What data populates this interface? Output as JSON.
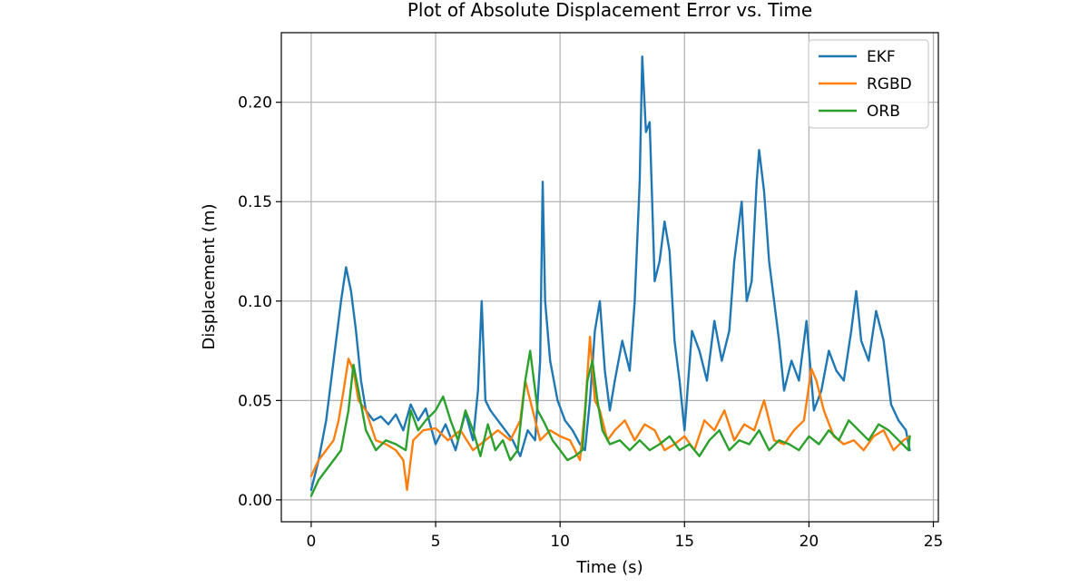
{
  "chart_data": {
    "type": "line",
    "title": "Plot of Absolute Displacement Error vs. Time",
    "xlabel": "Time (s)",
    "ylabel": "Displacement (m)",
    "xlim": [
      -1.2,
      25.2
    ],
    "ylim": [
      -0.011,
      0.235
    ],
    "x_ticks": [
      0,
      5,
      10,
      15,
      20,
      25
    ],
    "x_tick_labels": [
      "0",
      "5",
      "10",
      "15",
      "20",
      "25"
    ],
    "y_ticks": [
      0.0,
      0.05,
      0.1,
      0.15,
      0.2
    ],
    "y_tick_labels": [
      "0.00",
      "0.05",
      "0.10",
      "0.15",
      "0.20"
    ],
    "grid": true,
    "legend_position": "top-right",
    "series": [
      {
        "name": "EKF",
        "color": "#1f77b4",
        "x": [
          0.0,
          0.3,
          0.6,
          0.9,
          1.2,
          1.4,
          1.6,
          1.8,
          2.0,
          2.2,
          2.5,
          2.8,
          3.1,
          3.4,
          3.7,
          4.0,
          4.3,
          4.6,
          5.0,
          5.4,
          5.8,
          6.2,
          6.5,
          6.7,
          6.85,
          7.0,
          7.2,
          7.5,
          7.8,
          8.1,
          8.4,
          8.7,
          9.0,
          9.2,
          9.3,
          9.4,
          9.6,
          9.9,
          10.2,
          10.5,
          10.8,
          11.0,
          11.2,
          11.4,
          11.6,
          11.8,
          12.0,
          12.2,
          12.5,
          12.8,
          13.0,
          13.2,
          13.3,
          13.45,
          13.6,
          13.8,
          14.0,
          14.2,
          14.4,
          14.6,
          14.8,
          15.0,
          15.3,
          15.6,
          15.9,
          16.2,
          16.5,
          16.8,
          17.0,
          17.3,
          17.5,
          17.7,
          17.9,
          18.0,
          18.2,
          18.4,
          18.6,
          18.8,
          19.0,
          19.3,
          19.6,
          19.9,
          20.2,
          20.5,
          20.8,
          21.1,
          21.4,
          21.7,
          21.9,
          22.1,
          22.4,
          22.7,
          23.0,
          23.3,
          23.6,
          23.9,
          24.05
        ],
        "values": [
          0.005,
          0.02,
          0.04,
          0.07,
          0.1,
          0.117,
          0.105,
          0.085,
          0.06,
          0.045,
          0.04,
          0.042,
          0.038,
          0.043,
          0.035,
          0.048,
          0.04,
          0.046,
          0.028,
          0.038,
          0.025,
          0.044,
          0.03,
          0.055,
          0.1,
          0.05,
          0.045,
          0.04,
          0.035,
          0.03,
          0.022,
          0.035,
          0.03,
          0.07,
          0.16,
          0.1,
          0.07,
          0.05,
          0.04,
          0.035,
          0.028,
          0.025,
          0.05,
          0.085,
          0.1,
          0.065,
          0.045,
          0.06,
          0.08,
          0.065,
          0.1,
          0.16,
          0.223,
          0.185,
          0.19,
          0.11,
          0.12,
          0.14,
          0.125,
          0.08,
          0.06,
          0.035,
          0.085,
          0.075,
          0.06,
          0.09,
          0.07,
          0.085,
          0.12,
          0.15,
          0.1,
          0.11,
          0.16,
          0.176,
          0.155,
          0.12,
          0.1,
          0.08,
          0.055,
          0.07,
          0.06,
          0.09,
          0.045,
          0.055,
          0.075,
          0.065,
          0.06,
          0.085,
          0.105,
          0.08,
          0.07,
          0.095,
          0.08,
          0.048,
          0.04,
          0.035,
          0.025
        ]
      },
      {
        "name": "RGBD",
        "color": "#ff7f0e",
        "x": [
          0.0,
          0.3,
          0.6,
          0.9,
          1.1,
          1.3,
          1.5,
          1.7,
          1.9,
          2.2,
          2.6,
          3.0,
          3.4,
          3.7,
          3.85,
          4.1,
          4.5,
          5.0,
          5.5,
          6.0,
          6.5,
          7.0,
          7.5,
          8.0,
          8.4,
          8.6,
          8.9,
          9.2,
          9.6,
          10.0,
          10.4,
          10.8,
          11.0,
          11.2,
          11.4,
          11.6,
          11.9,
          12.2,
          12.6,
          13.0,
          13.4,
          13.8,
          14.2,
          14.6,
          15.0,
          15.4,
          15.8,
          16.2,
          16.6,
          17.0,
          17.4,
          17.8,
          18.2,
          18.6,
          19.0,
          19.4,
          19.8,
          20.1,
          20.3,
          20.6,
          21.0,
          21.4,
          21.8,
          22.2,
          22.6,
          23.0,
          23.4,
          23.8,
          24.05
        ],
        "values": [
          0.012,
          0.02,
          0.025,
          0.03,
          0.04,
          0.055,
          0.071,
          0.065,
          0.05,
          0.045,
          0.03,
          0.028,
          0.025,
          0.02,
          0.005,
          0.03,
          0.035,
          0.036,
          0.03,
          0.035,
          0.025,
          0.03,
          0.035,
          0.03,
          0.04,
          0.06,
          0.045,
          0.03,
          0.035,
          0.032,
          0.03,
          0.02,
          0.045,
          0.082,
          0.05,
          0.045,
          0.03,
          0.035,
          0.04,
          0.03,
          0.038,
          0.035,
          0.025,
          0.028,
          0.032,
          0.025,
          0.04,
          0.035,
          0.045,
          0.03,
          0.038,
          0.035,
          0.05,
          0.03,
          0.028,
          0.035,
          0.04,
          0.066,
          0.06,
          0.045,
          0.032,
          0.028,
          0.03,
          0.025,
          0.032,
          0.035,
          0.025,
          0.03,
          0.032
        ]
      },
      {
        "name": "ORB",
        "color": "#2ca02c",
        "x": [
          0.0,
          0.3,
          0.6,
          0.9,
          1.2,
          1.5,
          1.7,
          1.9,
          2.2,
          2.6,
          3.0,
          3.4,
          3.8,
          4.0,
          4.3,
          4.6,
          5.0,
          5.3,
          5.6,
          5.9,
          6.2,
          6.5,
          6.8,
          7.1,
          7.4,
          7.7,
          8.0,
          8.3,
          8.6,
          8.8,
          9.1,
          9.4,
          9.7,
          10.0,
          10.3,
          10.6,
          10.9,
          11.1,
          11.3,
          11.5,
          11.7,
          12.0,
          12.4,
          12.8,
          13.2,
          13.6,
          14.0,
          14.4,
          14.8,
          15.2,
          15.6,
          16.0,
          16.4,
          16.8,
          17.2,
          17.6,
          18.0,
          18.4,
          18.8,
          19.2,
          19.6,
          20.0,
          20.4,
          20.8,
          21.2,
          21.6,
          22.0,
          22.4,
          22.8,
          23.2,
          23.6,
          24.0,
          24.05
        ],
        "values": [
          0.002,
          0.01,
          0.015,
          0.02,
          0.025,
          0.045,
          0.068,
          0.055,
          0.035,
          0.025,
          0.03,
          0.028,
          0.025,
          0.045,
          0.035,
          0.04,
          0.045,
          0.052,
          0.04,
          0.03,
          0.045,
          0.035,
          0.022,
          0.038,
          0.025,
          0.03,
          0.02,
          0.025,
          0.06,
          0.075,
          0.045,
          0.038,
          0.03,
          0.025,
          0.02,
          0.022,
          0.025,
          0.06,
          0.07,
          0.05,
          0.035,
          0.028,
          0.03,
          0.025,
          0.03,
          0.025,
          0.028,
          0.032,
          0.025,
          0.028,
          0.022,
          0.03,
          0.035,
          0.025,
          0.03,
          0.028,
          0.035,
          0.025,
          0.03,
          0.028,
          0.025,
          0.032,
          0.028,
          0.035,
          0.03,
          0.04,
          0.035,
          0.03,
          0.038,
          0.035,
          0.03,
          0.025,
          0.032
        ]
      }
    ]
  }
}
